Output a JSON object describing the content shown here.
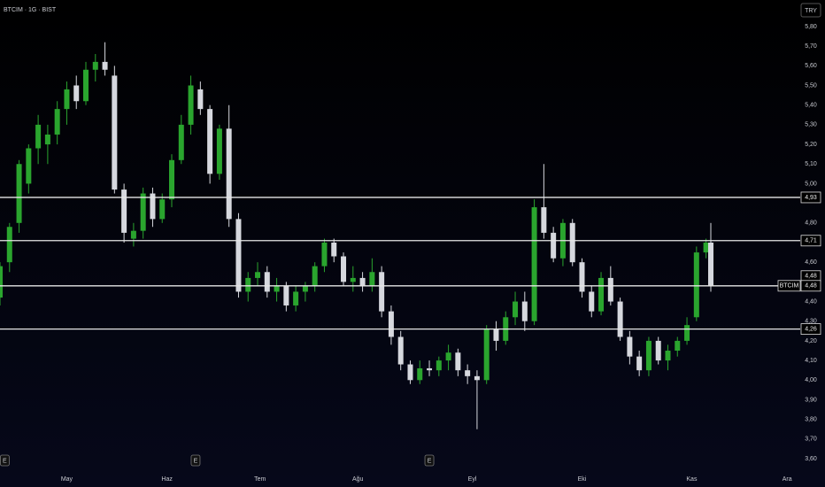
{
  "chart_data": {
    "type": "candlestick",
    "title": "BTCIM · 1G · BIST",
    "currency": "TRY",
    "x": [
      0,
      2,
      4,
      6,
      8,
      10,
      12,
      14,
      16,
      18,
      20,
      22,
      24,
      26,
      28,
      30,
      32,
      34,
      36,
      38,
      40,
      42,
      44,
      46,
      48,
      50,
      52,
      54,
      56,
      58,
      60,
      62,
      64,
      66,
      68,
      70,
      72,
      74,
      76,
      78,
      80,
      82,
      84,
      86,
      88,
      90,
      92,
      94,
      96,
      98,
      100,
      102,
      104,
      106,
      108,
      110,
      112,
      114,
      116,
      118,
      120,
      122,
      124,
      126,
      128,
      130,
      132,
      134,
      136,
      138,
      140,
      142,
      144,
      146,
      148,
      149
    ],
    "open": [
      4.42,
      4.6,
      4.8,
      5.0,
      5.18,
      5.2,
      5.25,
      5.38,
      5.5,
      5.42,
      5.58,
      5.62,
      5.55,
      4.97,
      4.72,
      4.76,
      4.95,
      4.82,
      4.92,
      5.12,
      5.3,
      5.48,
      5.38,
      5.05,
      5.28,
      4.82,
      4.45,
      4.52,
      4.55,
      4.45,
      4.48,
      4.38,
      4.45,
      4.48,
      4.58,
      4.7,
      4.63,
      4.5,
      4.52,
      4.48,
      4.55,
      4.35,
      4.22,
      4.08,
      4.0,
      4.06,
      4.05,
      4.1,
      4.14,
      4.05,
      4.02,
      4.0,
      4.26,
      4.2,
      4.32,
      4.4,
      4.3,
      4.88,
      4.75,
      4.62,
      4.8,
      4.6,
      4.45,
      4.35,
      4.52,
      4.4,
      4.22,
      4.12,
      4.05,
      4.2,
      4.1,
      4.15,
      4.2,
      4.32,
      4.65,
      4.7
    ],
    "high": [
      4.6,
      4.8,
      5.12,
      5.2,
      5.35,
      5.3,
      5.42,
      5.52,
      5.55,
      5.62,
      5.66,
      5.72,
      5.6,
      5.0,
      4.8,
      4.98,
      4.98,
      4.95,
      5.15,
      5.35,
      5.55,
      5.52,
      5.4,
      5.3,
      5.4,
      4.85,
      4.55,
      4.6,
      4.58,
      4.52,
      4.5,
      4.48,
      4.5,
      4.6,
      4.72,
      4.72,
      4.65,
      4.58,
      4.55,
      4.62,
      4.58,
      4.38,
      4.25,
      4.1,
      4.1,
      4.1,
      4.12,
      4.18,
      4.16,
      4.08,
      4.05,
      4.28,
      4.3,
      4.35,
      4.45,
      4.45,
      4.92,
      5.1,
      4.78,
      4.82,
      4.82,
      4.62,
      4.48,
      4.55,
      4.58,
      4.42,
      4.25,
      4.15,
      4.22,
      4.22,
      4.18,
      4.22,
      4.32,
      4.68,
      4.72,
      4.8
    ],
    "low": [
      4.38,
      4.55,
      4.75,
      4.95,
      5.1,
      5.1,
      5.2,
      5.3,
      5.38,
      5.4,
      5.52,
      5.55,
      4.95,
      4.7,
      4.68,
      4.72,
      4.78,
      4.8,
      4.88,
      5.1,
      5.25,
      5.35,
      5.0,
      5.02,
      4.78,
      4.42,
      4.4,
      4.48,
      4.42,
      4.4,
      4.35,
      4.35,
      4.4,
      4.45,
      4.55,
      4.6,
      4.48,
      4.45,
      4.45,
      4.45,
      4.32,
      4.18,
      4.05,
      3.98,
      3.98,
      4.02,
      4.02,
      4.05,
      4.02,
      3.98,
      3.75,
      3.98,
      4.15,
      4.18,
      4.28,
      4.25,
      4.28,
      4.72,
      4.6,
      4.58,
      4.58,
      4.42,
      4.32,
      4.33,
      4.38,
      4.2,
      4.08,
      4.02,
      4.02,
      4.08,
      4.05,
      4.12,
      4.18,
      4.3,
      4.62,
      4.45
    ],
    "close": [
      4.58,
      4.78,
      5.1,
      5.18,
      5.3,
      5.25,
      5.38,
      5.48,
      5.42,
      5.58,
      5.62,
      5.58,
      4.97,
      4.75,
      4.76,
      4.95,
      4.82,
      4.92,
      5.12,
      5.3,
      5.5,
      5.38,
      5.05,
      5.28,
      4.82,
      4.45,
      4.52,
      4.55,
      4.45,
      4.48,
      4.38,
      4.45,
      4.48,
      4.58,
      4.7,
      4.63,
      4.5,
      4.52,
      4.48,
      4.55,
      4.35,
      4.22,
      4.08,
      4.0,
      4.06,
      4.05,
      4.1,
      4.14,
      4.05,
      4.02,
      4.0,
      4.26,
      4.2,
      4.32,
      4.4,
      4.3,
      4.88,
      4.75,
      4.62,
      4.8,
      4.6,
      4.45,
      4.35,
      4.52,
      4.4,
      4.22,
      4.12,
      4.05,
      4.2,
      4.1,
      4.15,
      4.2,
      4.28,
      4.65,
      4.7,
      4.48
    ],
    "up_color": "#2aa52e",
    "down_color": "#d6d8de",
    "xlim": [
      0,
      167
    ],
    "xticks": [
      {
        "value": 14,
        "label": "May"
      },
      {
        "value": 35,
        "label": "Haz"
      },
      {
        "value": 54.5,
        "label": "Tem"
      },
      {
        "value": 75,
        "label": "Ağu"
      },
      {
        "value": 99,
        "label": "Eyl"
      },
      {
        "value": 122,
        "label": "Eki"
      },
      {
        "value": 145,
        "label": "Kas"
      },
      {
        "value": 165,
        "label": "Ara"
      }
    ],
    "ylim": [
      3.546,
      5.935
    ],
    "yticks": [
      {
        "value": 3.6,
        "label": "3,60"
      },
      {
        "value": 3.7,
        "label": "3,70"
      },
      {
        "value": 3.8,
        "label": "3,80"
      },
      {
        "value": 3.9,
        "label": "3,90"
      },
      {
        "value": 4.0,
        "label": "4,00"
      },
      {
        "value": 4.1,
        "label": "4,10"
      },
      {
        "value": 4.2,
        "label": "4,20"
      },
      {
        "value": 4.3,
        "label": "4,30"
      },
      {
        "value": 4.4,
        "label": "4,40"
      },
      {
        "value": 4.6,
        "label": "4,60"
      },
      {
        "value": 4.8,
        "label": "4,80"
      },
      {
        "value": 5.0,
        "label": "5,00"
      },
      {
        "value": 5.1,
        "label": "5,10"
      },
      {
        "value": 5.2,
        "label": "5,20"
      },
      {
        "value": 5.3,
        "label": "5,30"
      },
      {
        "value": 5.4,
        "label": "5,40"
      },
      {
        "value": 5.5,
        "label": "5,50"
      },
      {
        "value": 5.6,
        "label": "5,60"
      },
      {
        "value": 5.7,
        "label": "5,70"
      },
      {
        "value": 5.8,
        "label": "5,80"
      }
    ],
    "levels": [
      {
        "value": 4.93,
        "label": "4,93"
      },
      {
        "value": 4.71,
        "label": "4,71"
      },
      {
        "value": 4.48,
        "label": "4,48"
      },
      {
        "value": 4.26,
        "label": "4,26"
      }
    ],
    "last_price": {
      "name": "BTCIM",
      "value": 4.48,
      "label": "4,48"
    },
    "events": [
      {
        "x": 1,
        "label": "E"
      },
      {
        "x": 41,
        "label": "E"
      },
      {
        "x": 90,
        "label": "E"
      }
    ]
  }
}
